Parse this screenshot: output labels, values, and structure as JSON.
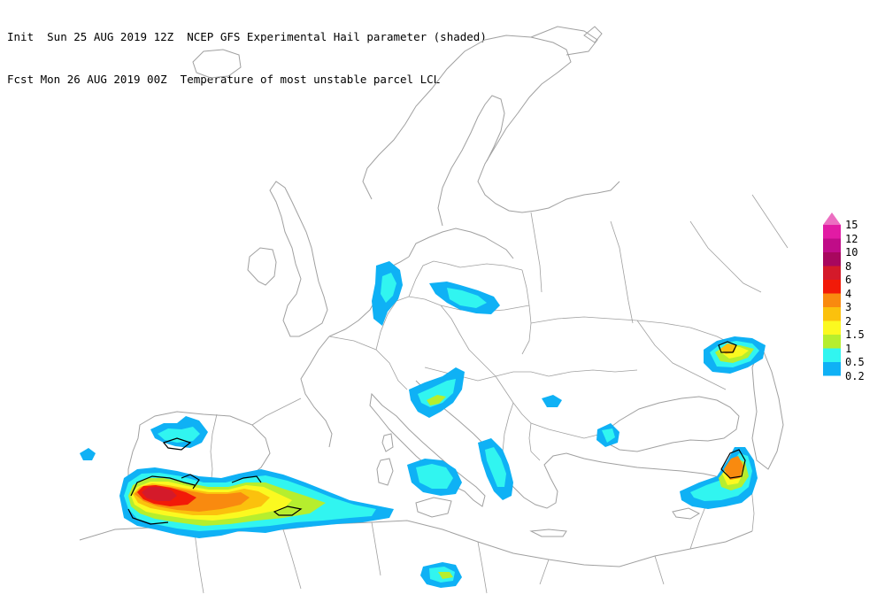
{
  "header": {
    "line1": "Init  Sun 25 AUG 2019 12Z  NCEP GFS Experimental Hail parameter (shaded)",
    "line2": "Fcst Mon 26 AUG 2019 00Z  Temperature of most unstable parcel LCL"
  },
  "legend": {
    "items": [
      {
        "label": "15",
        "color": "#ec6ec1"
      },
      {
        "label": "12",
        "color": "#e21ba4"
      },
      {
        "label": "10",
        "color": "#c00c88"
      },
      {
        "label": "8",
        "color": "#a8075e"
      },
      {
        "label": "6",
        "color": "#d41a2a"
      },
      {
        "label": "4",
        "color": "#f21a08"
      },
      {
        "label": "3",
        "color": "#f98a0f"
      },
      {
        "label": "2",
        "color": "#fbc10d"
      },
      {
        "label": "1.5",
        "color": "#fbf920"
      },
      {
        "label": "1",
        "color": "#b6ee2e"
      },
      {
        "label": "0.5",
        "color": "#31f5f0"
      },
      {
        "label": "0.2",
        "color": "#0fb1f5"
      }
    ]
  },
  "map": {
    "outline_color": "#a0a0a0",
    "features": [
      "europe-coastlines",
      "country-borders",
      "hail-shading",
      "lcl-contours"
    ]
  }
}
